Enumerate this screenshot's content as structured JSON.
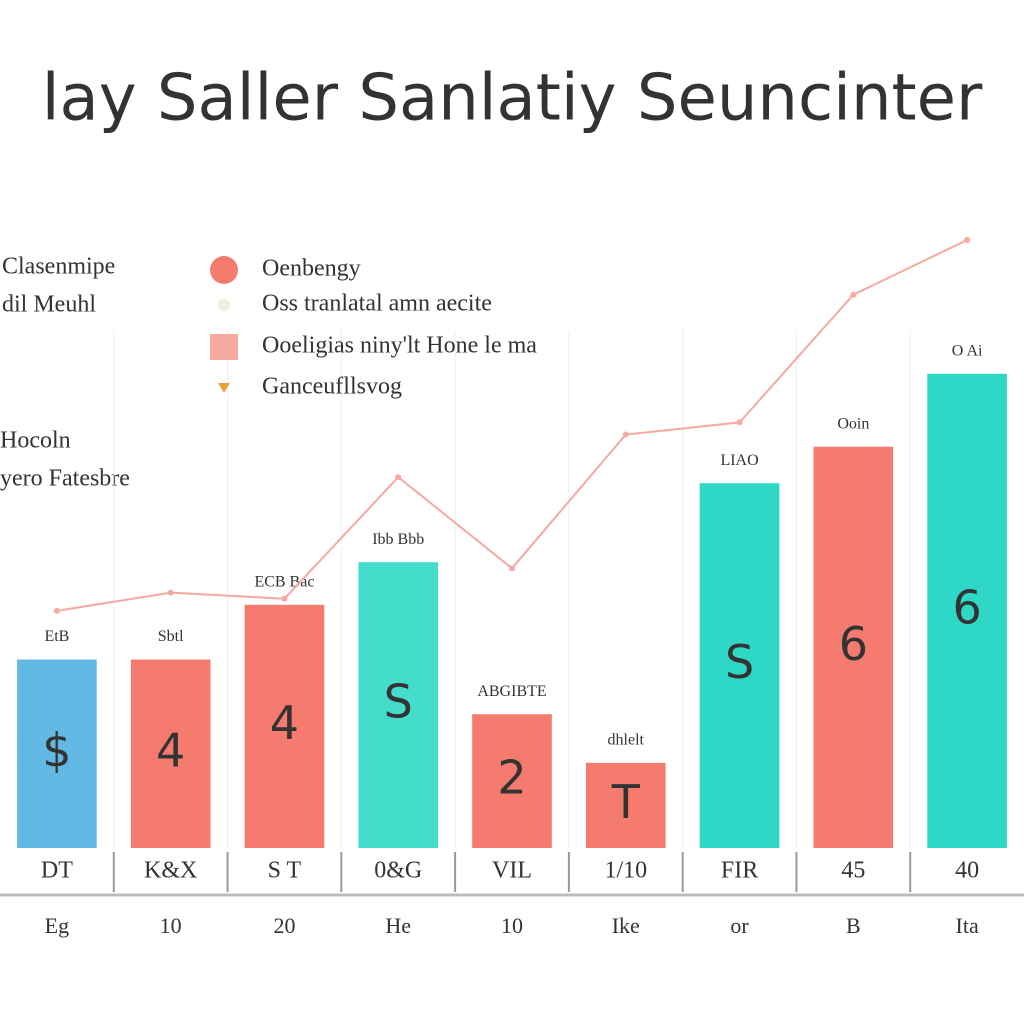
{
  "chart_data": {
    "type": "bar",
    "title": "lay Saller Sanlatiy Seuncinter",
    "side_notes": [
      "Clasenmipe",
      "dil Meuhl",
      "Hocoln",
      "yero Fatesbre"
    ],
    "categories": [
      "DT",
      "K&X",
      "S T",
      "0&G",
      "VIL",
      "1/10",
      "FIR",
      "45",
      "40"
    ],
    "sub_categories": [
      "Eg",
      "10",
      "20",
      "He",
      "10",
      "Ike",
      "or",
      "B",
      "Ita"
    ],
    "ylim": [
      0,
      100
    ],
    "series": [
      {
        "name": "Oenbengy",
        "color": "#f47b6e",
        "colors": [
          "#62b9e3",
          "#f47b6e",
          "#f47b6e",
          "#44dcca",
          "#f47b6e",
          "#f47b6e",
          "#2fd8c6",
          "#f47b6e",
          "#2fd8c6"
        ],
        "values": [
          31,
          31,
          40,
          47,
          22,
          14,
          60,
          66,
          78
        ],
        "bar_texts": [
          "$",
          "4",
          "4",
          "S",
          "2",
          "T",
          "S",
          "6",
          "6"
        ],
        "top_texts": [
          "EtB",
          "Sbtl",
          "ECB Bac",
          "Ibb Bbb",
          "ABGIBTE",
          "dhlelt",
          "LIAO",
          "Ooin",
          "O Ai"
        ]
      },
      {
        "name": "Oss tranlatal amn aecite",
        "color": "#f5a9a2",
        "type": "line",
        "values": [
          39,
          42,
          41,
          61,
          46,
          68,
          70,
          91,
          100
        ]
      }
    ],
    "legend_extra": [
      {
        "label": "Ooeligias niny'lt Hone le ma",
        "color": "#f7a99e"
      },
      {
        "label": "Ganceufllsvog",
        "color": "#e8a33c"
      }
    ]
  }
}
